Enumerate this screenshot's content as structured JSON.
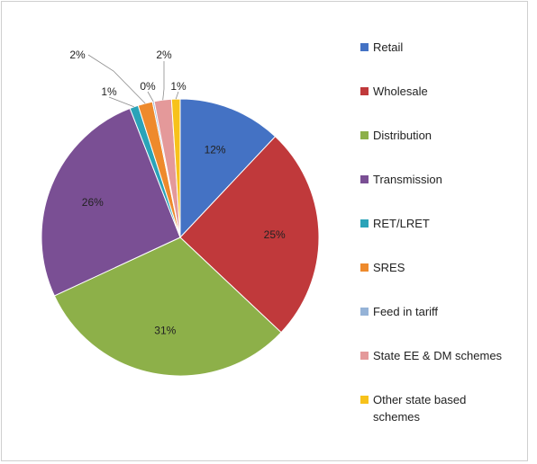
{
  "chart_data": {
    "type": "pie",
    "title": "",
    "legend_position": "right",
    "slices": [
      {
        "name": "Retail",
        "value": 12,
        "label": "12%",
        "color": "#4472c4"
      },
      {
        "name": "Wholesale",
        "value": 25,
        "label": "25%",
        "color": "#c0393b"
      },
      {
        "name": "Distribution",
        "value": 31,
        "label": "31%",
        "color": "#8db049"
      },
      {
        "name": "Transmission",
        "value": 26,
        "label": "26%",
        "color": "#7a4f94"
      },
      {
        "name": "RET/LRET",
        "value": 1,
        "label": "1%",
        "color": "#2aa3b8"
      },
      {
        "name": "SRES",
        "value": 1.7,
        "label": "2%",
        "color": "#ee8a2c"
      },
      {
        "name": "Feed in tariff",
        "value": 0.2,
        "label": "0%",
        "color": "#95b3d7"
      },
      {
        "name": "State EE & DM schemes",
        "value": 2,
        "label": "2%",
        "color": "#e4999a"
      },
      {
        "name": "Other state based schemes",
        "value": 1,
        "label": "1%",
        "color": "#f7c21b"
      }
    ]
  }
}
